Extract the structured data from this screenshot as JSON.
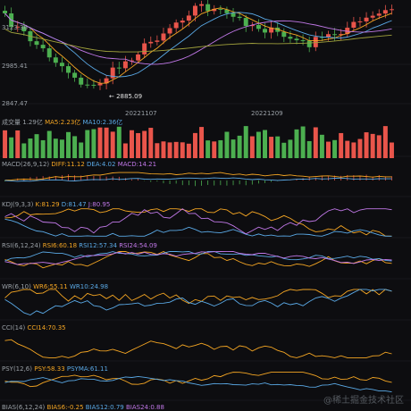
{
  "colors": {
    "background": "#0d0d10",
    "up": "#e9554b",
    "down": "#4caf50",
    "ma5": "#f5a623",
    "ma10": "#5aa9e6",
    "ma20": "#c178e8",
    "ma60": "#a1a13c",
    "grid": "#222228"
  },
  "price_axis": {
    "ticks": [
      "3123.36",
      "2985.41",
      "2847.47"
    ],
    "high_marker": "3123.36",
    "low_marker": "2885.09"
  },
  "dates": [
    "20221107",
    "20221209"
  ],
  "volume": {
    "title": "成交量",
    "value": "1.29亿",
    "ma5": "MA5:2.23亿",
    "ma10": "MA10:2.36亿"
  },
  "macd": {
    "title": "MACD(26,9,12)",
    "diff": "DIFF:11.12",
    "dea": "DEA:4.02",
    "macd": "MACD:14.21"
  },
  "kdj": {
    "title": "KDJ(9,3,3)",
    "k": "K:81.29",
    "d": "D:81.47",
    "j": "J:80.95"
  },
  "rsi": {
    "title": "RSI(6,12,24)",
    "r6": "RSI6:60.18",
    "r12": "RSI12:57.34",
    "r24": "RSI24:54.09"
  },
  "wr": {
    "title": "WR(6,10)",
    "w6": "WR6:55.11",
    "w10": "WR10:24.98"
  },
  "cci": {
    "title": "CCI(14)",
    "value": "CCI14:70.35"
  },
  "psy": {
    "title": "PSY(12,6)",
    "psy": "PSY:58.33",
    "psyma": "PSYMA:61.11"
  },
  "bias": {
    "title": "BIAS(6,12,24)",
    "b6": "BIAS6:-0.25",
    "b12": "BIAS12:0.79",
    "b24": "BIAS24:0.88"
  },
  "watermark": "@稀土掘金技术社区"
}
